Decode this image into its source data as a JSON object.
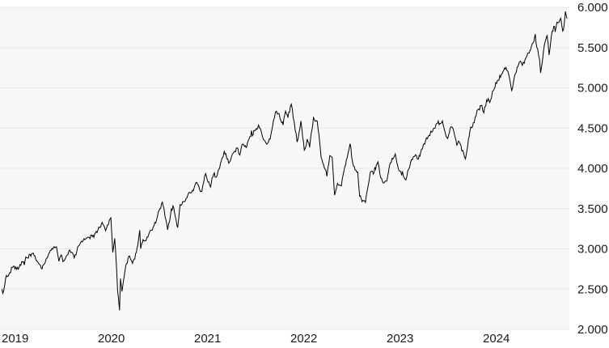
{
  "chart_data": {
    "type": "line",
    "title": "",
    "legend": "none",
    "grid": "horizontal-only",
    "number_format": "thousands-dot-separator",
    "colors": {
      "line": "#000000",
      "plot_background": "#f7f7f7",
      "gridline": "#e8e8e8",
      "page_background": "#ffffff",
      "label_text": "#1a1a1a"
    },
    "y_axis": {
      "side": "right",
      "min": 2000,
      "max": 6000,
      "tick_step": 500,
      "tick_values": [
        6000,
        5500,
        5000,
        4500,
        4000,
        3500,
        3000,
        2500,
        2000
      ],
      "tick_labels": [
        "6.000",
        "5.500",
        "5.000",
        "4.500",
        "4.000",
        "3.500",
        "3.000",
        "2.500",
        "2.000"
      ]
    },
    "x_axis": {
      "start_year": 2019,
      "end_year_fraction": 2024.88,
      "tick_values": [
        2019,
        2020,
        2021,
        2022,
        2023,
        2024
      ],
      "tick_labels": [
        "2019",
        "2020",
        "2021",
        "2022",
        "2023",
        "2024"
      ]
    },
    "series": [
      {
        "points": [
          [
            0.004,
            2500
          ],
          [
            0.012,
            2447
          ],
          [
            0.05,
            2670
          ],
          [
            0.085,
            2706
          ],
          [
            0.12,
            2780
          ],
          [
            0.155,
            2745
          ],
          [
            0.19,
            2805
          ],
          [
            0.22,
            2834
          ],
          [
            0.26,
            2890
          ],
          [
            0.33,
            2946
          ],
          [
            0.355,
            2870
          ],
          [
            0.42,
            2752
          ],
          [
            0.435,
            2800
          ],
          [
            0.49,
            2942
          ],
          [
            0.53,
            2995
          ],
          [
            0.57,
            3026
          ],
          [
            0.595,
            2845
          ],
          [
            0.62,
            2925
          ],
          [
            0.645,
            2847
          ],
          [
            0.67,
            2905
          ],
          [
            0.7,
            2978
          ],
          [
            0.735,
            2952
          ],
          [
            0.755,
            2888
          ],
          [
            0.8,
            3038
          ],
          [
            0.83,
            3095
          ],
          [
            0.91,
            3141
          ],
          [
            0.95,
            3169
          ],
          [
            1.0,
            3231
          ],
          [
            1.02,
            3265
          ],
          [
            1.045,
            3330
          ],
          [
            1.08,
            3226
          ],
          [
            1.1,
            3298
          ],
          [
            1.135,
            3386
          ],
          [
            1.155,
            2954
          ],
          [
            1.175,
            3130
          ],
          [
            1.195,
            2741
          ],
          [
            1.205,
            2481
          ],
          [
            1.225,
            2237
          ],
          [
            1.235,
            2630
          ],
          [
            1.25,
            2471
          ],
          [
            1.29,
            2790
          ],
          [
            1.33,
            2912
          ],
          [
            1.36,
            2820
          ],
          [
            1.4,
            2955
          ],
          [
            1.415,
            3044
          ],
          [
            1.435,
            3232
          ],
          [
            1.445,
            3002
          ],
          [
            1.47,
            3115
          ],
          [
            1.5,
            3100
          ],
          [
            1.53,
            3186
          ],
          [
            1.575,
            3271
          ],
          [
            1.61,
            3360
          ],
          [
            1.645,
            3500
          ],
          [
            1.67,
            3581
          ],
          [
            1.725,
            3237
          ],
          [
            1.755,
            3419
          ],
          [
            1.78,
            3534
          ],
          [
            1.805,
            3400
          ],
          [
            1.83,
            3270
          ],
          [
            1.855,
            3550
          ],
          [
            1.875,
            3558
          ],
          [
            1.915,
            3622
          ],
          [
            1.945,
            3700
          ],
          [
            1.975,
            3703
          ],
          [
            2.0,
            3756
          ],
          [
            2.02,
            3825
          ],
          [
            2.08,
            3714
          ],
          [
            2.1,
            3830
          ],
          [
            2.12,
            3935
          ],
          [
            2.145,
            3829
          ],
          [
            2.17,
            3768
          ],
          [
            2.21,
            3943
          ],
          [
            2.225,
            3889
          ],
          [
            2.25,
            3973
          ],
          [
            2.29,
            4128
          ],
          [
            2.33,
            4181
          ],
          [
            2.36,
            4063
          ],
          [
            2.395,
            4168
          ],
          [
            2.415,
            4204
          ],
          [
            2.455,
            4247
          ],
          [
            2.475,
            4166
          ],
          [
            2.5,
            4298
          ],
          [
            2.54,
            4258
          ],
          [
            2.58,
            4395
          ],
          [
            2.63,
            4468
          ],
          [
            2.67,
            4537
          ],
          [
            2.7,
            4443
          ],
          [
            2.72,
            4358
          ],
          [
            2.755,
            4300
          ],
          [
            2.79,
            4363
          ],
          [
            2.815,
            4520
          ],
          [
            2.845,
            4698
          ],
          [
            2.875,
            4683
          ],
          [
            2.91,
            4567
          ],
          [
            2.925,
            4538
          ],
          [
            2.95,
            4710
          ],
          [
            2.975,
            4630
          ],
          [
            3.0,
            4766
          ],
          [
            3.01,
            4797
          ],
          [
            3.04,
            4577
          ],
          [
            3.07,
            4327
          ],
          [
            3.1,
            4500
          ],
          [
            3.11,
            4587
          ],
          [
            3.145,
            4226
          ],
          [
            3.175,
            4363
          ],
          [
            3.2,
            4260
          ],
          [
            3.24,
            4631
          ],
          [
            3.28,
            4583
          ],
          [
            3.32,
            4132
          ],
          [
            3.36,
            3991
          ],
          [
            3.38,
            3901
          ],
          [
            3.41,
            4158
          ],
          [
            3.435,
            4132
          ],
          [
            3.455,
            3750
          ],
          [
            3.46,
            3667
          ],
          [
            3.49,
            3812
          ],
          [
            3.52,
            3790
          ],
          [
            3.55,
            3930
          ],
          [
            3.59,
            4130
          ],
          [
            3.62,
            4305
          ],
          [
            3.655,
            4030
          ],
          [
            3.7,
            3955
          ],
          [
            3.72,
            3655
          ],
          [
            3.745,
            3586
          ],
          [
            3.78,
            3577
          ],
          [
            3.8,
            3730
          ],
          [
            3.83,
            3950
          ],
          [
            3.87,
            3946
          ],
          [
            3.91,
            4080
          ],
          [
            3.93,
            3934
          ],
          [
            3.965,
            3817
          ],
          [
            3.995,
            3840
          ],
          [
            4.01,
            3892
          ],
          [
            4.04,
            4070
          ],
          [
            4.09,
            4180
          ],
          [
            4.13,
            3970
          ],
          [
            4.2,
            3856
          ],
          [
            4.23,
            3990
          ],
          [
            4.26,
            4110
          ],
          [
            4.3,
            4169
          ],
          [
            4.33,
            4115
          ],
          [
            4.38,
            4283
          ],
          [
            4.44,
            4410
          ],
          [
            4.47,
            4450
          ],
          [
            4.52,
            4555
          ],
          [
            4.58,
            4589
          ],
          [
            4.61,
            4437
          ],
          [
            4.635,
            4370
          ],
          [
            4.67,
            4516
          ],
          [
            4.7,
            4450
          ],
          [
            4.73,
            4288
          ],
          [
            4.755,
            4330
          ],
          [
            4.79,
            4224
          ],
          [
            4.82,
            4117
          ],
          [
            4.85,
            4358
          ],
          [
            4.875,
            4514
          ],
          [
            4.91,
            4568
          ],
          [
            4.94,
            4719
          ],
          [
            4.99,
            4783
          ],
          [
            5.01,
            4689
          ],
          [
            5.04,
            4850
          ],
          [
            5.08,
            4846
          ],
          [
            5.1,
            4958
          ],
          [
            5.16,
            5096
          ],
          [
            5.2,
            5175
          ],
          [
            5.24,
            5254
          ],
          [
            5.26,
            5205
          ],
          [
            5.3,
            4967
          ],
          [
            5.34,
            5180
          ],
          [
            5.38,
            5321
          ],
          [
            5.41,
            5278
          ],
          [
            5.44,
            5354
          ],
          [
            5.47,
            5434
          ],
          [
            5.49,
            5460
          ],
          [
            5.53,
            5572
          ],
          [
            5.545,
            5667
          ],
          [
            5.56,
            5505
          ],
          [
            5.58,
            5399
          ],
          [
            5.59,
            5346
          ],
          [
            5.6,
            5186
          ],
          [
            5.63,
            5455
          ],
          [
            5.66,
            5625
          ],
          [
            5.668,
            5648
          ],
          [
            5.68,
            5528
          ],
          [
            5.688,
            5408
          ],
          [
            5.71,
            5626
          ],
          [
            5.72,
            5702
          ],
          [
            5.745,
            5762
          ],
          [
            5.752,
            5695
          ],
          [
            5.77,
            5815
          ],
          [
            5.8,
            5842
          ],
          [
            5.81,
            5864
          ],
          [
            5.83,
            5705
          ],
          [
            5.845,
            5783
          ],
          [
            5.858,
            5949
          ],
          [
            5.874,
            5860
          ]
        ]
      }
    ]
  }
}
